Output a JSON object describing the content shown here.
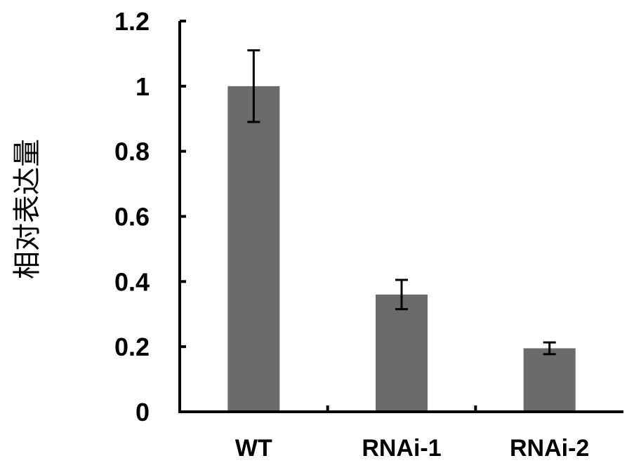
{
  "chart_data": {
    "type": "bar",
    "title": "",
    "xlabel": "",
    "ylabel": "相对表达量",
    "categories": [
      "WT",
      "RNAi-1",
      "RNAi-2"
    ],
    "series": [
      {
        "values": [
          1.0,
          0.36,
          0.195
        ],
        "errors": [
          0.11,
          0.045,
          0.018
        ]
      }
    ],
    "ylim": [
      0,
      1.2
    ],
    "yticks": [
      0,
      0.2,
      0.4,
      0.6,
      0.8,
      1,
      1.2
    ],
    "ytick_labels": [
      "0",
      "0.2",
      "0.4",
      "0.6",
      "0.8",
      "1",
      "1.2"
    ],
    "grid": false,
    "legend": "none",
    "colors": {
      "bar": "#6b6b6b",
      "axis": "#000000",
      "error_bar": "#000000"
    }
  }
}
